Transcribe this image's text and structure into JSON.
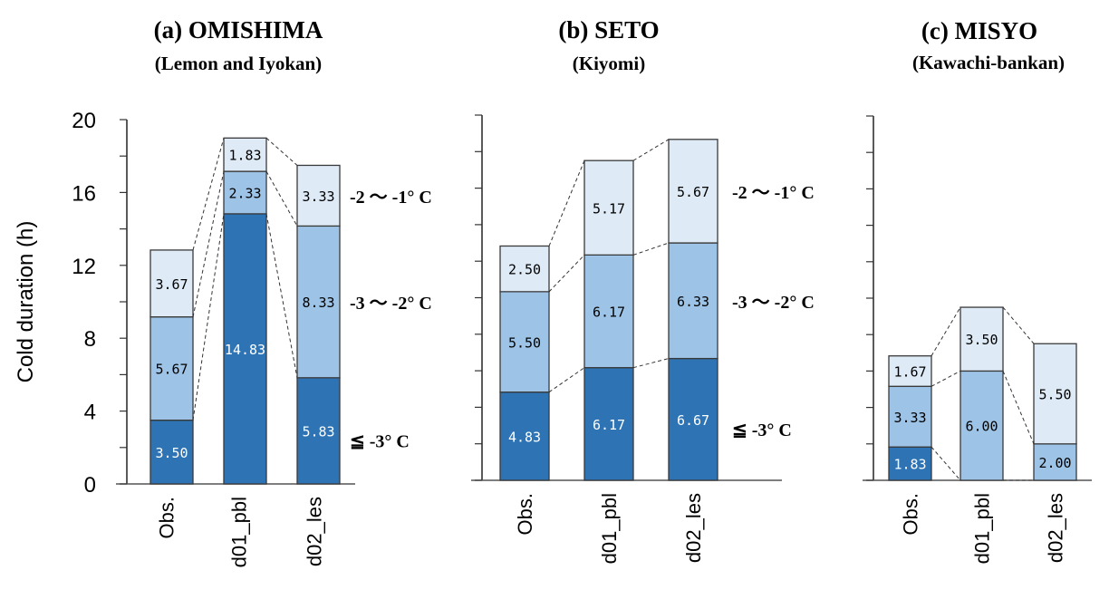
{
  "chart_data": {
    "type": "bar",
    "stacked": true,
    "ylabel": "Cold duration (h)",
    "ylim": [
      0,
      20
    ],
    "yticks": [
      0,
      4,
      8,
      12,
      16,
      20
    ],
    "minor_tick_step": 2,
    "categories": [
      "Obs.",
      "d01_pbl",
      "d02_les"
    ],
    "series_colors": {
      "le_-3": "#2e74b5",
      "-3_-2": "#9dc3e6",
      "-2_-1": "#deebf7"
    },
    "legend": [
      {
        "key": "-2_-1",
        "label": "-2 ～ -1° C"
      },
      {
        "key": "-3_-2",
        "label": "-3 ～ -2° C"
      },
      {
        "key": "le_-3",
        "label": "≦ -3° C"
      }
    ],
    "panels": [
      {
        "title": "(a)  OMISHIMA",
        "subtitle": "(Lemon and Iyokan)",
        "show_tick_labels": true,
        "show_legend": true,
        "series": [
          {
            "key": "le_-3",
            "name": "≦ -3° C",
            "values": [
              3.5,
              14.83,
              5.83
            ]
          },
          {
            "key": "-3_-2",
            "name": "-3 ～ -2° C",
            "values": [
              5.67,
              2.33,
              8.33
            ]
          },
          {
            "key": "-2_-1",
            "name": "-2 ～ -1° C",
            "values": [
              3.67,
              1.83,
              3.33
            ]
          }
        ]
      },
      {
        "title": "(b)  SETO",
        "subtitle": "(Kiyomi)",
        "show_tick_labels": false,
        "show_legend": true,
        "series": [
          {
            "key": "le_-3",
            "name": "≦ -3° C",
            "values": [
              4.83,
              6.17,
              6.67
            ]
          },
          {
            "key": "-3_-2",
            "name": "-3 ～ -2° C",
            "values": [
              5.5,
              6.17,
              6.33
            ]
          },
          {
            "key": "-2_-1",
            "name": "-2 ～ -1° C",
            "values": [
              2.5,
              5.17,
              5.67
            ]
          }
        ]
      },
      {
        "title": "(c)  MISYO",
        "subtitle": "(Kawachi-bankan)",
        "show_tick_labels": false,
        "show_legend": false,
        "series": [
          {
            "key": "le_-3",
            "name": "≦ -3° C",
            "values": [
              1.83,
              0,
              0
            ]
          },
          {
            "key": "-3_-2",
            "name": "-3 ～ -2° C",
            "values": [
              3.33,
              6.0,
              2.0
            ]
          },
          {
            "key": "-2_-1",
            "name": "-2 ～ -1° C",
            "values": [
              1.67,
              3.5,
              5.5
            ]
          }
        ]
      }
    ]
  }
}
